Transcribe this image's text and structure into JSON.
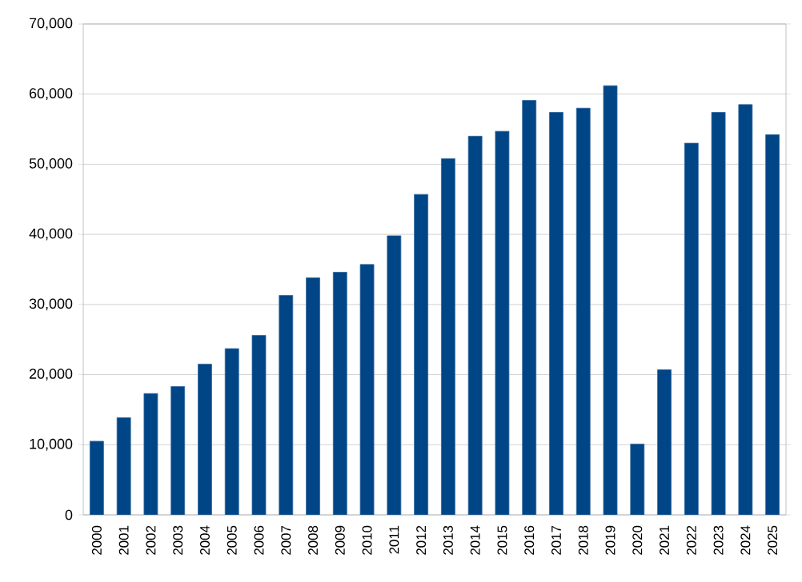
{
  "chart_data": {
    "type": "bar",
    "categories": [
      "2000",
      "2001",
      "2002",
      "2003",
      "2004",
      "2005",
      "2006",
      "2007",
      "2008",
      "2009",
      "2010",
      "2011",
      "2012",
      "2013",
      "2014",
      "2015",
      "2016",
      "2017",
      "2018",
      "2019",
      "2020",
      "2021",
      "2022",
      "2023",
      "2024",
      "2025"
    ],
    "values": [
      10500,
      13850,
      17300,
      18300,
      21500,
      23700,
      25600,
      31300,
      33800,
      34600,
      35700,
      39800,
      45700,
      50800,
      54000,
      54700,
      59100,
      57400,
      58000,
      61200,
      10100,
      20700,
      53000,
      57400,
      58500,
      54200
    ],
    "color": "#004586",
    "ylim": [
      0,
      70000
    ],
    "yticks": [
      0,
      {
        "value": 10000,
        "label": "10,000"
      },
      {
        "value": 20000,
        "label": "20,000"
      },
      {
        "value": 30000,
        "label": "30,000"
      },
      {
        "value": 40000,
        "label": "40,000"
      },
      {
        "value": 50000,
        "label": "50,000"
      },
      {
        "value": 60000,
        "label": "60,000"
      },
      {
        "value": 70000,
        "label": "70,000"
      }
    ],
    "grid": "y"
  }
}
